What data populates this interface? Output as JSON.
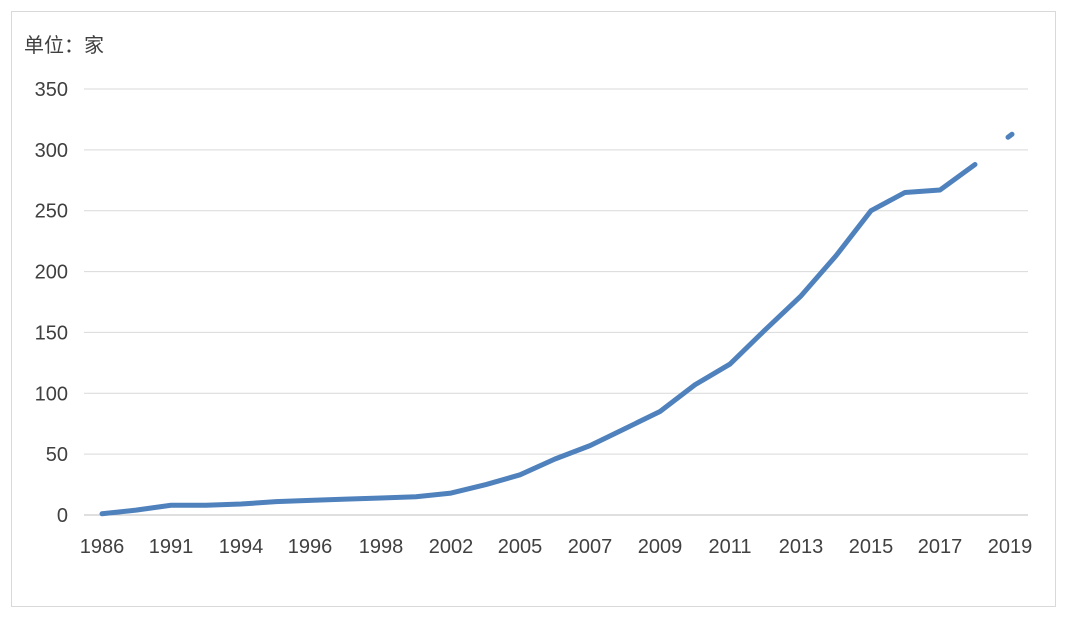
{
  "chart_data": {
    "type": "line",
    "unit_label": "单位：家",
    "yticks": [
      "0",
      "50",
      "100",
      "150",
      "200",
      "250",
      "300",
      "350"
    ],
    "ylim": [
      0,
      350
    ],
    "x_tick_labels": [
      "1986",
      "1991",
      "1994",
      "1996",
      "1998",
      "2002",
      "2005",
      "2007",
      "2009",
      "2011",
      "2013",
      "2015",
      "2017",
      "2019"
    ],
    "grid": true,
    "series": [
      {
        "color": "#4f81bd",
        "x": [
          "1986",
          "1987",
          "1991",
          "1992",
          "1994",
          "1995",
          "1996",
          "1997",
          "1998",
          "2001",
          "2002",
          "2004",
          "2005",
          "2006",
          "2007",
          "2008",
          "2009",
          "2010",
          "2011",
          "2012",
          "2013",
          "2014",
          "2015",
          "2016",
          "2017",
          "2018"
        ],
        "values": [
          1,
          4,
          8,
          8,
          9,
          11,
          12,
          13,
          14,
          15,
          18,
          25,
          33,
          46,
          57,
          71,
          85,
          107,
          124,
          152,
          180,
          213,
          250,
          265,
          267,
          288
        ]
      },
      {
        "color": "#4f81bd",
        "x": [
          "2019"
        ],
        "values": [
          312
        ]
      }
    ]
  }
}
